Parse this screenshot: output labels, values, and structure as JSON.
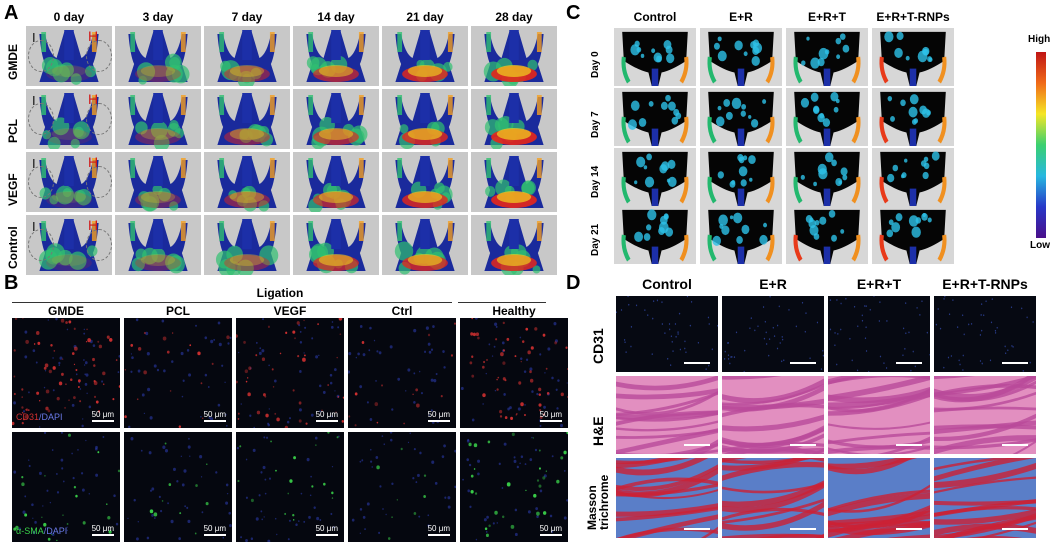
{
  "panel_a": {
    "label": "A",
    "columns": [
      "0 day",
      "3 day",
      "7 day",
      "14 day",
      "21 day",
      "28 day"
    ],
    "rows": [
      "GMDE",
      "PCL",
      "VEGF",
      "Control"
    ],
    "mark_ischemic": "I",
    "mark_healthy": "H"
  },
  "panel_b": {
    "label": "B",
    "group_title": "Ligation",
    "columns": [
      "GMDE",
      "PCL",
      "VEGF",
      "Ctrl",
      "Healthy"
    ],
    "row1_marker": "CD31",
    "row1_rest": "/DAPI",
    "row2_marker": "α-SMA",
    "row2_rest": "/DAPI",
    "scale_text": "50 μm"
  },
  "panel_c": {
    "label": "C",
    "columns": [
      "Control",
      "E+R",
      "E+R+T",
      "E+R+T-RNPs"
    ],
    "rows": [
      "Day 0",
      "Day 7",
      "Day 14",
      "Day 21"
    ],
    "colorbar_high": "High",
    "colorbar_low": "Low"
  },
  "panel_d": {
    "label": "D",
    "columns": [
      "Control",
      "E+R",
      "E+R+T",
      "E+R+T-RNPs"
    ],
    "rows": [
      "CD31",
      "H&E",
      "Masson trichrome"
    ]
  },
  "colors": {
    "heat_low": "#1a2a9c",
    "heat_mid": "#31c070",
    "heat_high": "#e8261a",
    "fluor_red": "#d03030",
    "fluor_green": "#3ad24a",
    "fluor_blue": "#2a3aa8",
    "he_pink": "#e28fc0",
    "masson_blue": "#5a7ec8",
    "masson_red": "#cc2035"
  }
}
